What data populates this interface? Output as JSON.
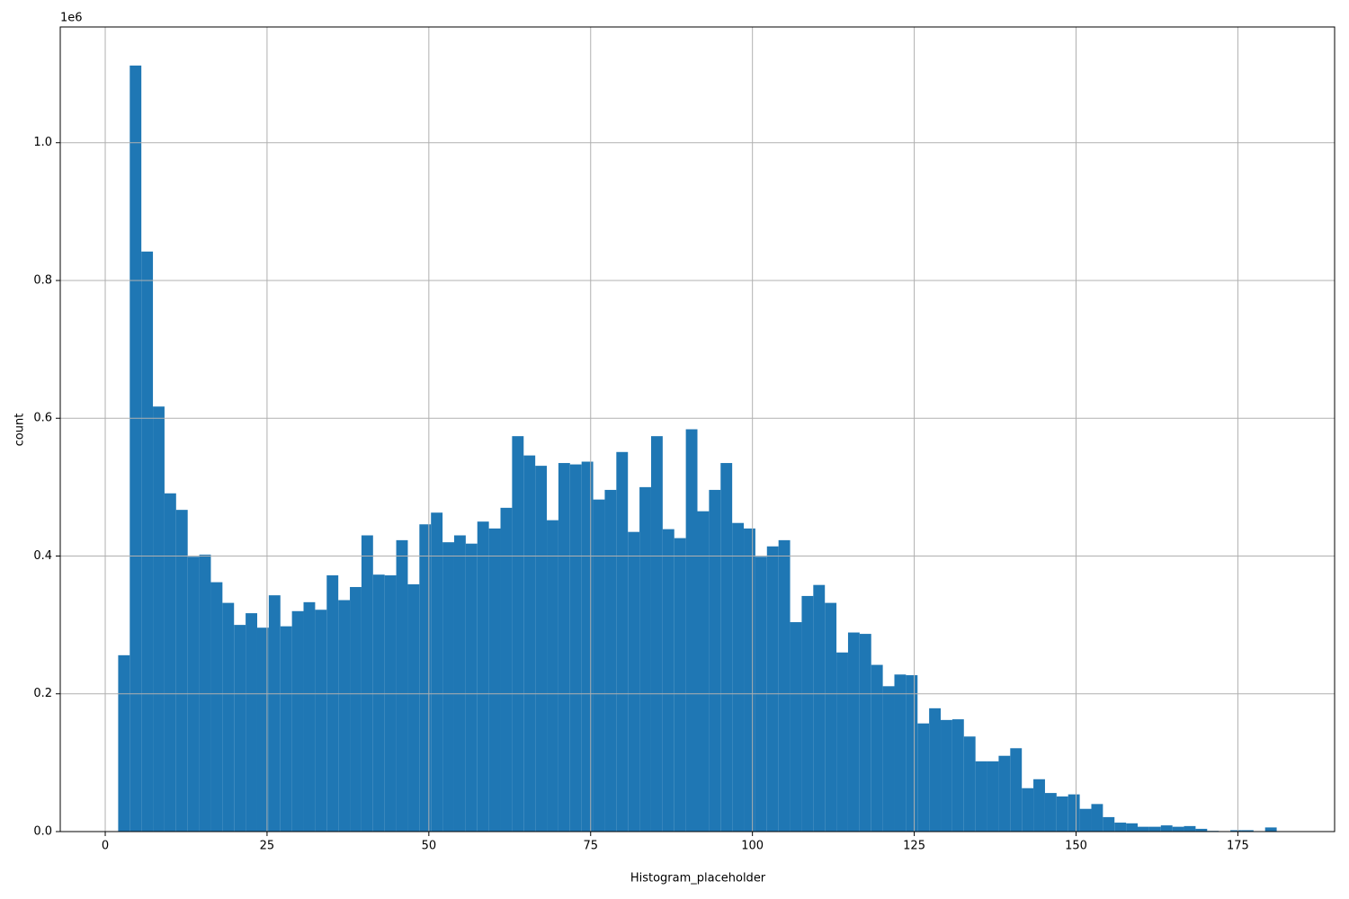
{
  "chart_data": {
    "type": "histogram",
    "x_label": "Histogram_placeholder",
    "y_label": "count",
    "y_offset_label": "1e6",
    "color": "#1f77b4",
    "grid": true,
    "bins": [
      2,
      3.79,
      5.58,
      7.37,
      9.16,
      10.95,
      12.74,
      14.53,
      16.32,
      18.11,
      19.9,
      21.69,
      23.48,
      25.27,
      27.06,
      28.85,
      30.64,
      32.43,
      34.22,
      36.01,
      37.8,
      39.59,
      41.38,
      43.17,
      44.96,
      46.75,
      48.54,
      50.33,
      52.12,
      53.91,
      55.7,
      57.49,
      59.28,
      61.07,
      62.86,
      64.65,
      66.44,
      68.23,
      70.02,
      71.81,
      73.6,
      75.39,
      77.18,
      78.97,
      80.76,
      82.55,
      84.34,
      86.13,
      87.92,
      89.71,
      91.5,
      93.29,
      95.08,
      96.87,
      98.66,
      100.45,
      102.24,
      104.03,
      105.82,
      107.61,
      109.4,
      111.19,
      112.98,
      114.77,
      116.56,
      118.35,
      120.14,
      121.93,
      123.72,
      125.51,
      127.3,
      129.09,
      130.88,
      132.67,
      134.46,
      136.25,
      138.04,
      139.83,
      141.62,
      143.41,
      145.2,
      146.99,
      148.78,
      150.57,
      152.36,
      154.15,
      155.94,
      157.73,
      159.52,
      161.31,
      163.1,
      164.89,
      166.68,
      168.47,
      170.26,
      172.05,
      173.84,
      175.63,
      177.42,
      179.21,
      181.0
    ],
    "values": [
      0.256,
      1.112,
      0.842,
      0.617,
      0.491,
      0.467,
      0.399,
      0.402,
      0.362,
      0.332,
      0.3,
      0.317,
      0.296,
      0.343,
      0.298,
      0.32,
      0.333,
      0.322,
      0.372,
      0.336,
      0.355,
      0.43,
      0.373,
      0.372,
      0.423,
      0.359,
      0.446,
      0.463,
      0.42,
      0.43,
      0.418,
      0.45,
      0.44,
      0.47,
      0.574,
      0.546,
      0.531,
      0.452,
      0.535,
      0.533,
      0.537,
      0.482,
      0.496,
      0.551,
      0.435,
      0.5,
      0.574,
      0.439,
      0.426,
      0.584,
      0.465,
      0.496,
      0.535,
      0.448,
      0.44,
      0.399,
      0.414,
      0.423,
      0.304,
      0.342,
      0.358,
      0.332,
      0.26,
      0.289,
      0.287,
      0.242,
      0.211,
      0.228,
      0.227,
      0.157,
      0.179,
      0.162,
      0.163,
      0.138,
      0.102,
      0.102,
      0.11,
      0.121,
      0.063,
      0.076,
      0.056,
      0.051,
      0.054,
      0.033,
      0.04,
      0.021,
      0.013,
      0.012,
      0.007,
      0.007,
      0.009,
      0.007,
      0.008,
      0.004,
      0.001,
      0,
      0.002,
      0.002,
      0,
      0.006
    ],
    "xlim": [
      -6.95,
      189.95
    ],
    "xticks": [
      0,
      25,
      50,
      75,
      100,
      125,
      150,
      175
    ],
    "ylim": [
      0,
      1.168
    ],
    "yticks": [
      {
        "value": 0,
        "label": "0.0"
      },
      0.2,
      0.4,
      0.6,
      0.8,
      {
        "value": 1,
        "label": "1.0"
      }
    ]
  }
}
